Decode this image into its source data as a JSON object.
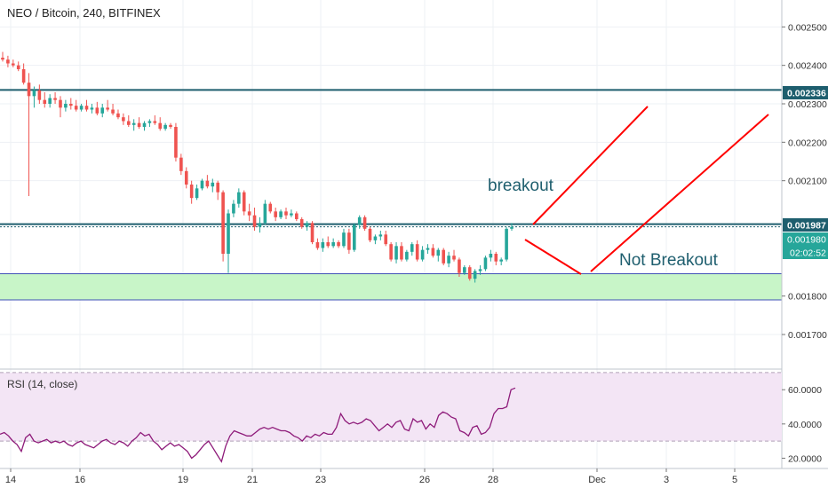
{
  "header": {
    "title": "NEO / Bitcoin, 240, BITFINEX"
  },
  "annotations": {
    "breakout": "breakout",
    "not_breakout": "Not Breakout"
  },
  "price_labels": {
    "resistance": "0.002336",
    "current_line": "0.001987",
    "last_price": "0.001980",
    "countdown": "02:02:52"
  },
  "rsi": {
    "title": "RSI (14, close)",
    "ticks": [
      "60.0000",
      "40.0000",
      "20.0000"
    ]
  },
  "colors": {
    "bull": "#26a69a",
    "bear": "#ef5350",
    "hline": "#1e5e6e",
    "zone_fill": "#c8f5c8",
    "zone_line": "#3f51b5",
    "drawing": "#ff0000",
    "rsi_line": "#8e1b7a",
    "rsi_band": "#f3e5f5",
    "annotation_text": "#1e5e6e"
  },
  "chart_data": {
    "type": "candlestick",
    "title": "NEO / Bitcoin, 240, BITFINEX",
    "x_axis": {
      "ticks": [
        "14",
        "16",
        "19",
        "21",
        "23",
        "26",
        "28",
        "Dec",
        "3",
        "5"
      ],
      "tick_dates": [
        "Nov 14",
        "Nov 16",
        "Nov 19",
        "Nov 21",
        "Nov 23",
        "Nov 26",
        "Nov 28",
        "Dec 1",
        "Dec 3",
        "Dec 5"
      ]
    },
    "y_axis": {
      "ticks": [
        "0.002500",
        "0.002400",
        "0.002300",
        "0.002200",
        "0.002100",
        "0.001800",
        "0.001700"
      ],
      "range": [
        0.00161,
        0.00257
      ]
    },
    "candles_ohlc": [
      [
        0.00242,
        0.002435,
        0.00241,
        0.002415
      ],
      [
        0.002415,
        0.002425,
        0.002395,
        0.002405
      ],
      [
        0.002405,
        0.002415,
        0.002395,
        0.0024
      ],
      [
        0.0024,
        0.00241,
        0.002385,
        0.00239
      ],
      [
        0.00239,
        0.002405,
        0.00235,
        0.002355
      ],
      [
        0.002355,
        0.00238,
        0.00206,
        0.00232
      ],
      [
        0.00232,
        0.002345,
        0.00229,
        0.002335
      ],
      [
        0.002335,
        0.00235,
        0.0023,
        0.00231
      ],
      [
        0.00231,
        0.00233,
        0.00229,
        0.0023
      ],
      [
        0.0023,
        0.002325,
        0.00229,
        0.002315
      ],
      [
        0.002315,
        0.00233,
        0.0023,
        0.00231
      ],
      [
        0.00231,
        0.00232,
        0.002265,
        0.00229
      ],
      [
        0.00229,
        0.00231,
        0.00228,
        0.0023
      ],
      [
        0.0023,
        0.002315,
        0.002285,
        0.002295
      ],
      [
        0.002295,
        0.00231,
        0.00228,
        0.002285
      ],
      [
        0.002285,
        0.0023,
        0.00228,
        0.002295
      ],
      [
        0.002295,
        0.00231,
        0.00228,
        0.002285
      ],
      [
        0.002285,
        0.0023,
        0.002275,
        0.00229
      ],
      [
        0.00229,
        0.002305,
        0.00227,
        0.002275
      ],
      [
        0.002275,
        0.0023,
        0.002265,
        0.00229
      ],
      [
        0.00229,
        0.00231,
        0.00228,
        0.002285
      ],
      [
        0.002285,
        0.0023,
        0.00227,
        0.002275
      ],
      [
        0.002275,
        0.002285,
        0.00226,
        0.002265
      ],
      [
        0.002265,
        0.002275,
        0.002245,
        0.002255
      ],
      [
        0.002255,
        0.00227,
        0.00224,
        0.002245
      ],
      [
        0.002245,
        0.00226,
        0.00223,
        0.00225
      ],
      [
        0.00225,
        0.002265,
        0.002235,
        0.00224
      ],
      [
        0.00224,
        0.002255,
        0.00223,
        0.00225
      ],
      [
        0.00225,
        0.00226,
        0.00224,
        0.002255
      ],
      [
        0.002255,
        0.00227,
        0.002245,
        0.00225
      ],
      [
        0.00225,
        0.002265,
        0.00223,
        0.002235
      ],
      [
        0.002235,
        0.00225,
        0.00223,
        0.002245
      ],
      [
        0.002245,
        0.00225,
        0.002235,
        0.00224
      ],
      [
        0.00224,
        0.00225,
        0.00215,
        0.00216
      ],
      [
        0.00216,
        0.00217,
        0.002115,
        0.002125
      ],
      [
        0.002125,
        0.002135,
        0.00208,
        0.00209
      ],
      [
        0.00209,
        0.0021,
        0.00204,
        0.002055
      ],
      [
        0.002055,
        0.00209,
        0.00205,
        0.00208
      ],
      [
        0.00208,
        0.002105,
        0.002075,
        0.0021
      ],
      [
        0.0021,
        0.002115,
        0.00208,
        0.002085
      ],
      [
        0.002085,
        0.002105,
        0.00207,
        0.002095
      ],
      [
        0.002095,
        0.0021,
        0.00205,
        0.00207
      ],
      [
        0.00207,
        0.002075,
        0.00189,
        0.00191
      ],
      [
        0.00191,
        0.002025,
        0.00186,
        0.002015
      ],
      [
        0.002015,
        0.00205,
        0.002005,
        0.00204
      ],
      [
        0.00204,
        0.00208,
        0.00203,
        0.00207
      ],
      [
        0.00207,
        0.002075,
        0.00201,
        0.00202
      ],
      [
        0.00202,
        0.00204,
        0.001995,
        0.00201
      ],
      [
        0.00201,
        0.00203,
        0.00197,
        0.00198
      ],
      [
        0.00198,
        0.002005,
        0.001965,
        0.00199
      ],
      [
        0.00199,
        0.00205,
        0.001985,
        0.00204
      ],
      [
        0.00204,
        0.002045,
        0.002015,
        0.00202
      ],
      [
        0.00202,
        0.00203,
        0.001995,
        0.002005
      ],
      [
        0.002005,
        0.002025,
        0.002,
        0.00202
      ],
      [
        0.00202,
        0.00203,
        0.002,
        0.00201
      ],
      [
        0.00201,
        0.002025,
        0.002005,
        0.002015
      ],
      [
        0.002015,
        0.00202,
        0.001995,
        0.002
      ],
      [
        0.002,
        0.002005,
        0.001975,
        0.00198
      ],
      [
        0.00198,
        0.001995,
        0.00197,
        0.00199
      ],
      [
        0.00199,
        0.001995,
        0.001935,
        0.00194
      ],
      [
        0.00194,
        0.00195,
        0.00192,
        0.001925
      ],
      [
        0.001925,
        0.00195,
        0.001915,
        0.00194
      ],
      [
        0.00194,
        0.001955,
        0.001925,
        0.00193
      ],
      [
        0.00193,
        0.00195,
        0.001925,
        0.00194
      ],
      [
        0.00194,
        0.001945,
        0.001925,
        0.00193
      ],
      [
        0.00193,
        0.001975,
        0.001925,
        0.001965
      ],
      [
        0.001965,
        0.001975,
        0.00191,
        0.00192
      ],
      [
        0.00192,
        0.00199,
        0.001915,
        0.001985
      ],
      [
        0.001985,
        0.00201,
        0.001975,
        0.002005
      ],
      [
        0.002005,
        0.00201,
        0.00197,
        0.001975
      ],
      [
        0.001975,
        0.00198,
        0.00194,
        0.001945
      ],
      [
        0.001945,
        0.00196,
        0.001935,
        0.001955
      ],
      [
        0.001955,
        0.00197,
        0.001945,
        0.00196
      ],
      [
        0.00196,
        0.00197,
        0.00193,
        0.001935
      ],
      [
        0.001935,
        0.00194,
        0.00189,
        0.001895
      ],
      [
        0.001895,
        0.00194,
        0.001885,
        0.00193
      ],
      [
        0.00193,
        0.00194,
        0.00189,
        0.001895
      ],
      [
        0.001895,
        0.00192,
        0.00189,
        0.001915
      ],
      [
        0.001915,
        0.00194,
        0.001905,
        0.001935
      ],
      [
        0.001935,
        0.001945,
        0.00189,
        0.001895
      ],
      [
        0.001895,
        0.00193,
        0.00189,
        0.00192
      ],
      [
        0.00192,
        0.001935,
        0.00191,
        0.001925
      ],
      [
        0.001925,
        0.001935,
        0.0019,
        0.001905
      ],
      [
        0.001905,
        0.001925,
        0.00189,
        0.00192
      ],
      [
        0.00192,
        0.001925,
        0.00188,
        0.001885
      ],
      [
        0.001885,
        0.001915,
        0.001875,
        0.001905
      ],
      [
        0.001905,
        0.00192,
        0.00189,
        0.001895
      ],
      [
        0.001895,
        0.0019,
        0.00185,
        0.00186
      ],
      [
        0.00186,
        0.00188,
        0.001855,
        0.001875
      ],
      [
        0.001875,
        0.00188,
        0.00184,
        0.001845
      ],
      [
        0.001845,
        0.00187,
        0.001835,
        0.001865
      ],
      [
        0.001865,
        0.00188,
        0.001855,
        0.00187
      ],
      [
        0.00187,
        0.001905,
        0.001865,
        0.0019
      ],
      [
        0.0019,
        0.00192,
        0.00189,
        0.00191
      ],
      [
        0.00191,
        0.001915,
        0.00188,
        0.00189
      ],
      [
        0.00189,
        0.0019,
        0.00188,
        0.001895
      ],
      [
        0.001895,
        0.00198,
        0.00189,
        0.001975
      ],
      [
        0.001975,
        0.00199,
        0.00197,
        0.00198
      ]
    ],
    "horizontal_lines": [
      0.002336,
      0.001987,
      0.00198
    ],
    "support_zone": [
      0.00179,
      0.001858
    ],
    "rsi_series": [
      34,
      35,
      33,
      30,
      28,
      24,
      32,
      34,
      30,
      29,
      30,
      31,
      29,
      30,
      29,
      30,
      28,
      27,
      29,
      30,
      28,
      27,
      26,
      28,
      30,
      31,
      29,
      28,
      30,
      29,
      27,
      30,
      32,
      35,
      33,
      34,
      30,
      28,
      25,
      27,
      29,
      27,
      28,
      26,
      24,
      20,
      22,
      25,
      28,
      30,
      26,
      22,
      18,
      27,
      33,
      36,
      35,
      34,
      33,
      33,
      35,
      37,
      38,
      37,
      38,
      37,
      36,
      36,
      35,
      33,
      32,
      30,
      33,
      32,
      34,
      33,
      35,
      34,
      34,
      38,
      46,
      42,
      40,
      41,
      40,
      41,
      43,
      42,
      39,
      36,
      38,
      40,
      38,
      41,
      42,
      37,
      36,
      43,
      41,
      42,
      37,
      40,
      38,
      45,
      47,
      46,
      44,
      43,
      36,
      35,
      33,
      38,
      39,
      34,
      35,
      38,
      46,
      49,
      49,
      50,
      60,
      61
    ],
    "rsi_ylim": [
      14,
      71
    ],
    "rsi_bands": [
      30,
      70
    ]
  }
}
